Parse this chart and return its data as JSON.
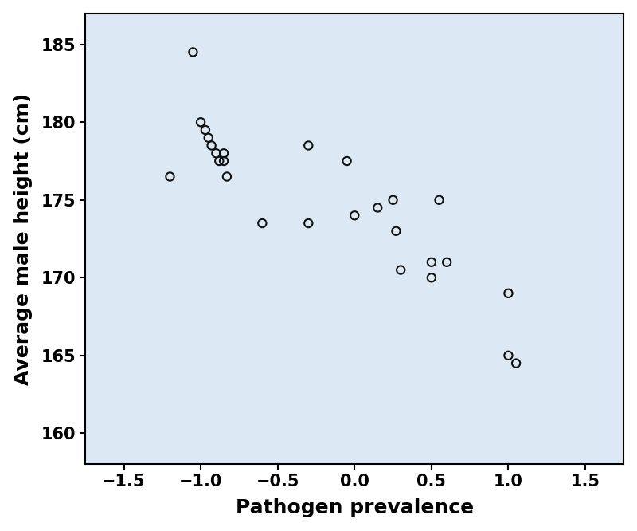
{
  "x": [
    -1.2,
    -1.05,
    -1.0,
    -0.97,
    -0.95,
    -0.93,
    -0.9,
    -0.88,
    -0.85,
    -0.85,
    -0.83,
    -0.6,
    -0.3,
    -0.3,
    -0.05,
    0.0,
    0.15,
    0.25,
    0.27,
    0.3,
    0.5,
    0.5,
    0.55,
    0.6,
    1.0,
    1.0,
    1.05
  ],
  "y": [
    176.5,
    184.5,
    180.0,
    179.5,
    179.0,
    178.5,
    178.0,
    177.5,
    178.0,
    177.5,
    176.5,
    173.5,
    178.5,
    173.5,
    177.5,
    174.0,
    174.5,
    175.0,
    173.0,
    170.5,
    171.0,
    170.0,
    175.0,
    171.0,
    169.0,
    165.0,
    164.5
  ],
  "xlabel": "Pathogen prevalence",
  "ylabel": "Average male height (cm)",
  "xlim": [
    -1.75,
    1.75
  ],
  "ylim": [
    158,
    187
  ],
  "xticks": [
    -1.5,
    -1.0,
    -0.5,
    0.0,
    0.5,
    1.0,
    1.5
  ],
  "yticks": [
    160,
    165,
    170,
    175,
    180,
    185
  ],
  "plot_bg_color": "#DCE9F5",
  "fig_bg_color": "#ffffff",
  "marker_facecolor": "none",
  "marker_edgecolor": "#111111",
  "marker_size": 55,
  "marker_linewidth": 1.5,
  "xlabel_fontsize": 18,
  "ylabel_fontsize": 18,
  "tick_fontsize": 15,
  "xlabel_fontweight": "bold",
  "ylabel_fontweight": "bold",
  "tick_fontweight": "bold",
  "spine_color": "#000000",
  "spine_linewidth": 1.5
}
